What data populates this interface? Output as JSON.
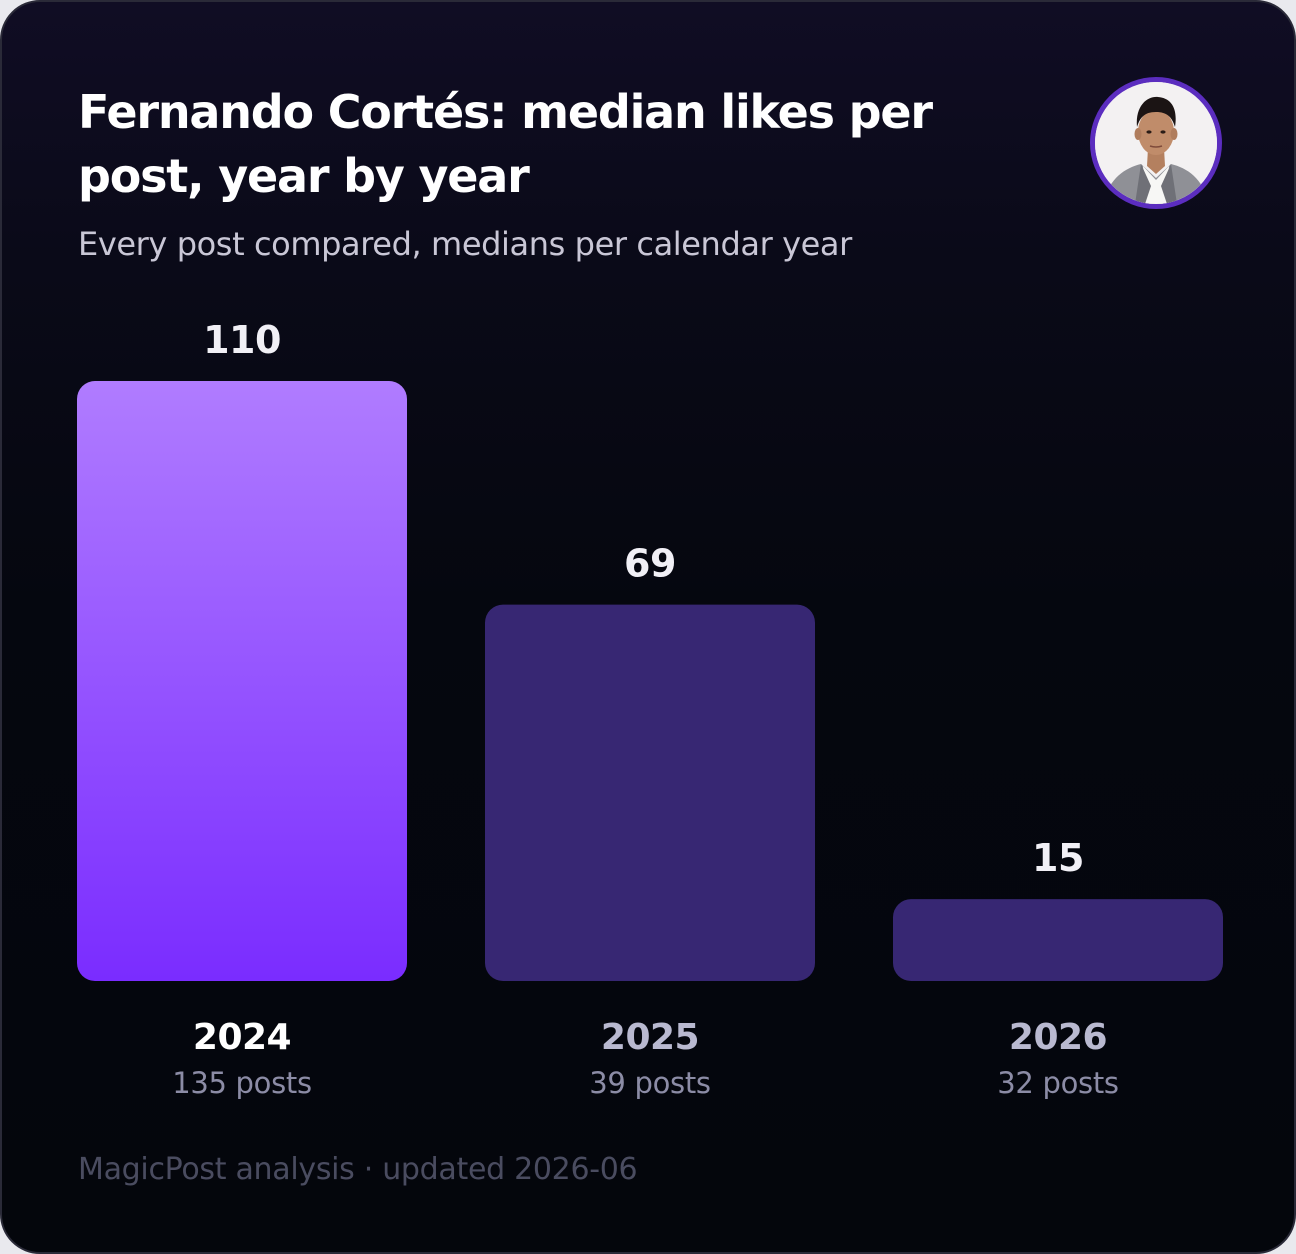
{
  "card": {
    "title": "Fernando Cortés: median likes per post, year by year",
    "subtitle": "Every post compared, medians per calendar year",
    "footer": "MagicPost analysis · updated 2026-06"
  },
  "avatar": {
    "icon": "profile-photo",
    "ring_color": "#5b2dbf"
  },
  "colors": {
    "highlight_top": "#b07cff",
    "highlight_bottom": "#7a2cff",
    "bar_muted": "#372773",
    "value_label": "#f1f0f6",
    "year_highlight": "#ffffff",
    "year_muted": "#b9b9d0",
    "posts_label": "#8c8ca6"
  },
  "chart_data": {
    "type": "bar",
    "title": "Fernando Cortés: median likes per post, year by year",
    "subtitle": "Every post compared, medians per calendar year",
    "categories": [
      "2024",
      "2025",
      "2026"
    ],
    "values": [
      110,
      69,
      15
    ],
    "post_counts": [
      "135 posts",
      "39 posts",
      "32 posts"
    ],
    "highlighted_category": "2024",
    "ylim": [
      0,
      110
    ],
    "grid": false
  }
}
